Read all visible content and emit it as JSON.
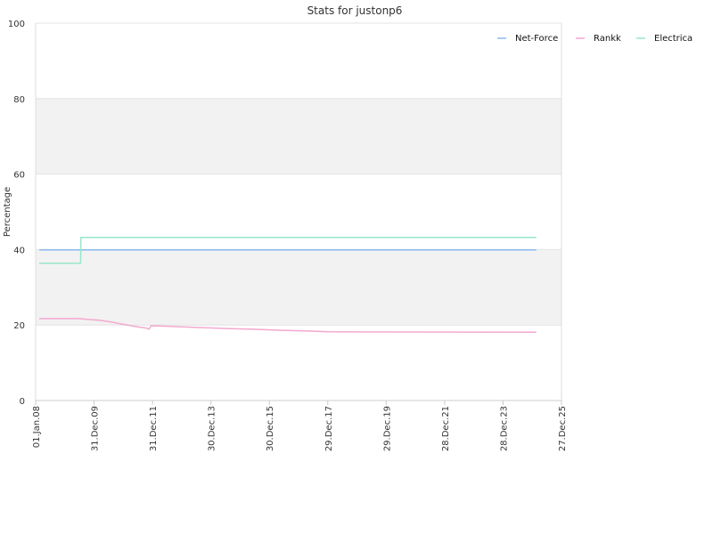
{
  "chart_data": {
    "type": "line",
    "title": "Stats for justonp6",
    "ylabel": "Percentage",
    "xlabel": "",
    "ylim": [
      0,
      100
    ],
    "y_ticks": [
      "0",
      "20",
      "40",
      "60",
      "80",
      "100"
    ],
    "x_range": [
      "2008-01-01",
      "2025-12-27"
    ],
    "x_ticks": [
      {
        "date": "2008-01-01",
        "label": "01.Jan.08"
      },
      {
        "date": "2009-12-31",
        "label": "31.Dec.09"
      },
      {
        "date": "2011-12-31",
        "label": "31.Dec.11"
      },
      {
        "date": "2013-12-30",
        "label": "30.Dec.13"
      },
      {
        "date": "2015-12-30",
        "label": "30.Dec.15"
      },
      {
        "date": "2017-12-29",
        "label": "29.Dec.17"
      },
      {
        "date": "2019-12-29",
        "label": "29.Dec.19"
      },
      {
        "date": "2021-12-28",
        "label": "28.Dec.21"
      },
      {
        "date": "2023-12-28",
        "label": "28.Dec.23"
      },
      {
        "date": "2025-12-27",
        "label": "27.Dec.25"
      }
    ],
    "grid": true,
    "legend_position": "top-right",
    "series": [
      {
        "name": "Net-Force",
        "color": "#88bbee",
        "points": [
          [
            "2008-02-15",
            39.9
          ],
          [
            "2025-02-15",
            39.9
          ]
        ]
      },
      {
        "name": "Rankk",
        "color": "#f4a8cf",
        "points": [
          [
            "2008-02-15",
            21.7
          ],
          [
            "2009-07-01",
            21.7
          ],
          [
            "2009-10-01",
            21.5
          ],
          [
            "2010-03-01",
            21.3
          ],
          [
            "2010-08-01",
            20.8
          ],
          [
            "2011-01-01",
            20.2
          ],
          [
            "2011-06-01",
            19.6
          ],
          [
            "2011-10-15",
            19.2
          ],
          [
            "2011-11-15",
            18.9
          ],
          [
            "2011-12-15",
            19.8
          ],
          [
            "2012-06-01",
            19.7
          ],
          [
            "2013-06-01",
            19.4
          ],
          [
            "2014-06-01",
            19.1
          ],
          [
            "2015-06-01",
            18.9
          ],
          [
            "2016-06-01",
            18.6
          ],
          [
            "2017-06-01",
            18.4
          ],
          [
            "2018-01-01",
            18.2
          ],
          [
            "2025-02-15",
            18.1
          ]
        ]
      },
      {
        "name": "Electrica",
        "color": "#99e6c8",
        "points": [
          [
            "2008-02-15",
            36.4
          ],
          [
            "2009-07-15",
            36.4
          ],
          [
            "2009-07-20",
            43.2
          ],
          [
            "2025-02-15",
            43.2
          ]
        ]
      }
    ]
  }
}
